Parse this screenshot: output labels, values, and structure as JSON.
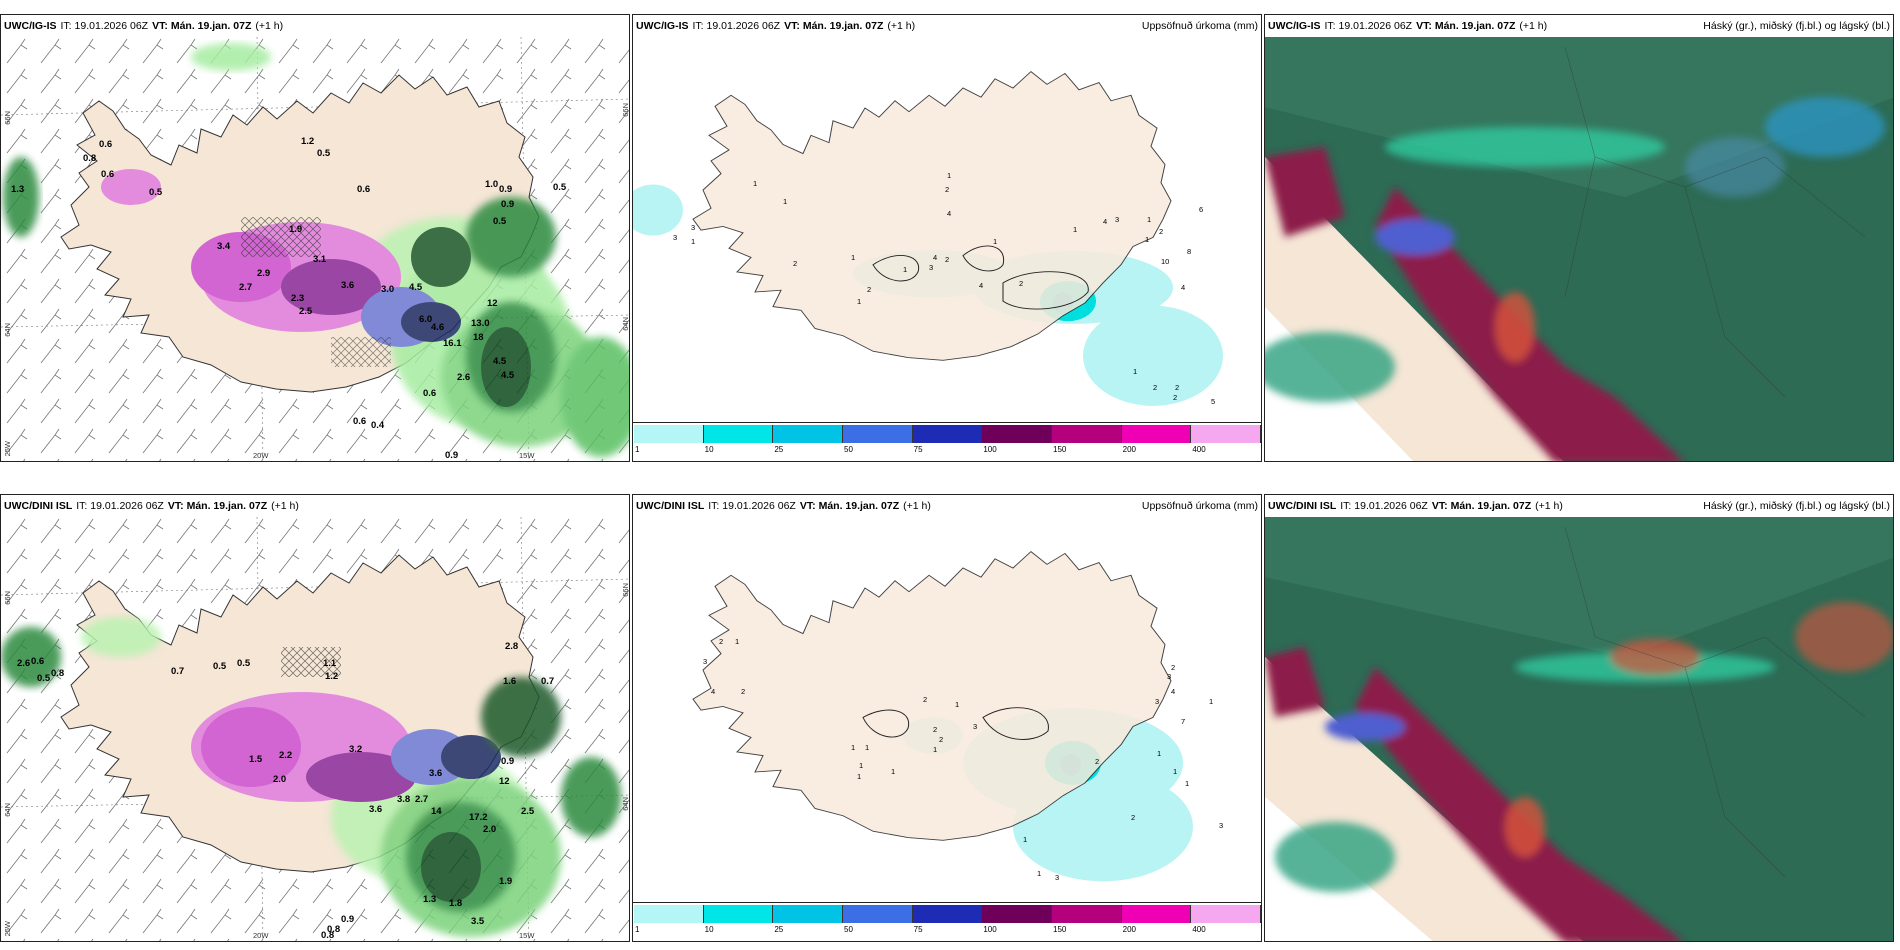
{
  "header_common": {
    "it_label": "IT:",
    "it_value": "19.01.2026 06Z",
    "vt_label": "VT:",
    "vt_value": "Mán. 19.jan. 07Z",
    "lead": "(+1 h)"
  },
  "panels": {
    "r0c0": {
      "model": "UWC/IG-IS",
      "title": ""
    },
    "r0c1": {
      "model": "UWC/IG-IS",
      "title": "Uppsöfnuð úrkoma (mm)"
    },
    "r0c2": {
      "model": "UWC/IG-IS",
      "title": "Háský (gr.), miðský (fj.bl.) og lágský (bl.)"
    },
    "r1c0": {
      "model": "UWC/DINI ISL",
      "title": ""
    },
    "r1c1": {
      "model": "UWC/DINI ISL",
      "title": "Uppsöfnuð úrkoma (mm)"
    },
    "r1c2": {
      "model": "UWC/DINI ISL",
      "title": "Háský (gr.), miðský (fj.bl.) og lágský (bl.)"
    }
  },
  "axis_labels": {
    "lat66_left": "66N",
    "lat65_left": "64N",
    "lon25": "25W",
    "lon20": "20W",
    "lon15": "15W",
    "lat66_right": "66N",
    "lat65_right": "64N"
  },
  "colorbar": {
    "ticks": [
      "1",
      "10",
      "25",
      "50",
      "75",
      "100",
      "150",
      "200",
      "400"
    ],
    "colors": [
      "#b4f5f5",
      "#00e6e6",
      "#00c3e6",
      "#3c6ee6",
      "#1e2bb4",
      "#6e005a",
      "#b4007d",
      "#f000b4",
      "#f5a8f0"
    ]
  },
  "precip_labels_top": [
    "0.6",
    "0.8",
    "0.6",
    "0.5",
    "1.2",
    "0.5",
    "0.6",
    "0.9",
    "0.5",
    "1.0",
    "0.9",
    "0.5",
    "1.9",
    "3.4",
    "3.1",
    "2.9",
    "2.7",
    "2.3",
    "2.5",
    "3.6",
    "3.0",
    "4.5",
    "6.0",
    "4.6",
    "16.1",
    "13.0",
    "18",
    "12",
    "4.5",
    "4.5",
    "2.6",
    "0.6",
    "0.6",
    "0.4",
    "0.9",
    "1.3"
  ],
  "precip_labels_bot": [
    "2.6",
    "0.6",
    "0.5",
    "0.8",
    "0.5",
    "0.5",
    "1.1",
    "1.2",
    "0.7",
    "2.8",
    "1.6",
    "0.7",
    "2.2",
    "3.2",
    "3.6",
    "2.0",
    "1.5",
    "3.6",
    "3.8",
    "2.7",
    "14",
    "17.2",
    "12",
    "0.9",
    "2.0",
    "1.9",
    "3.5",
    "0.8",
    "1.3",
    "1.8",
    "0.9",
    "0.8",
    "2.5"
  ],
  "accum_labels_top": [
    "1",
    "1",
    "2",
    "1",
    "2",
    "4",
    "3",
    "3",
    "1",
    "1",
    "2",
    "4",
    "4",
    "3",
    "2",
    "1",
    "2",
    "1",
    "1",
    "1",
    "4",
    "3",
    "1",
    "1",
    "2",
    "6",
    "10",
    "8",
    "4",
    "1",
    "2",
    "2",
    "2",
    "5"
  ],
  "accum_labels_bot": [
    "2",
    "1",
    "3",
    "4",
    "2",
    "1",
    "1",
    "1",
    "1",
    "2",
    "1",
    "3",
    "2",
    "2",
    "1",
    "1",
    "1",
    "2",
    "3",
    "4",
    "3",
    "1",
    "7",
    "2",
    "1",
    "3",
    "1",
    "1",
    "1",
    "2",
    "3"
  ]
}
